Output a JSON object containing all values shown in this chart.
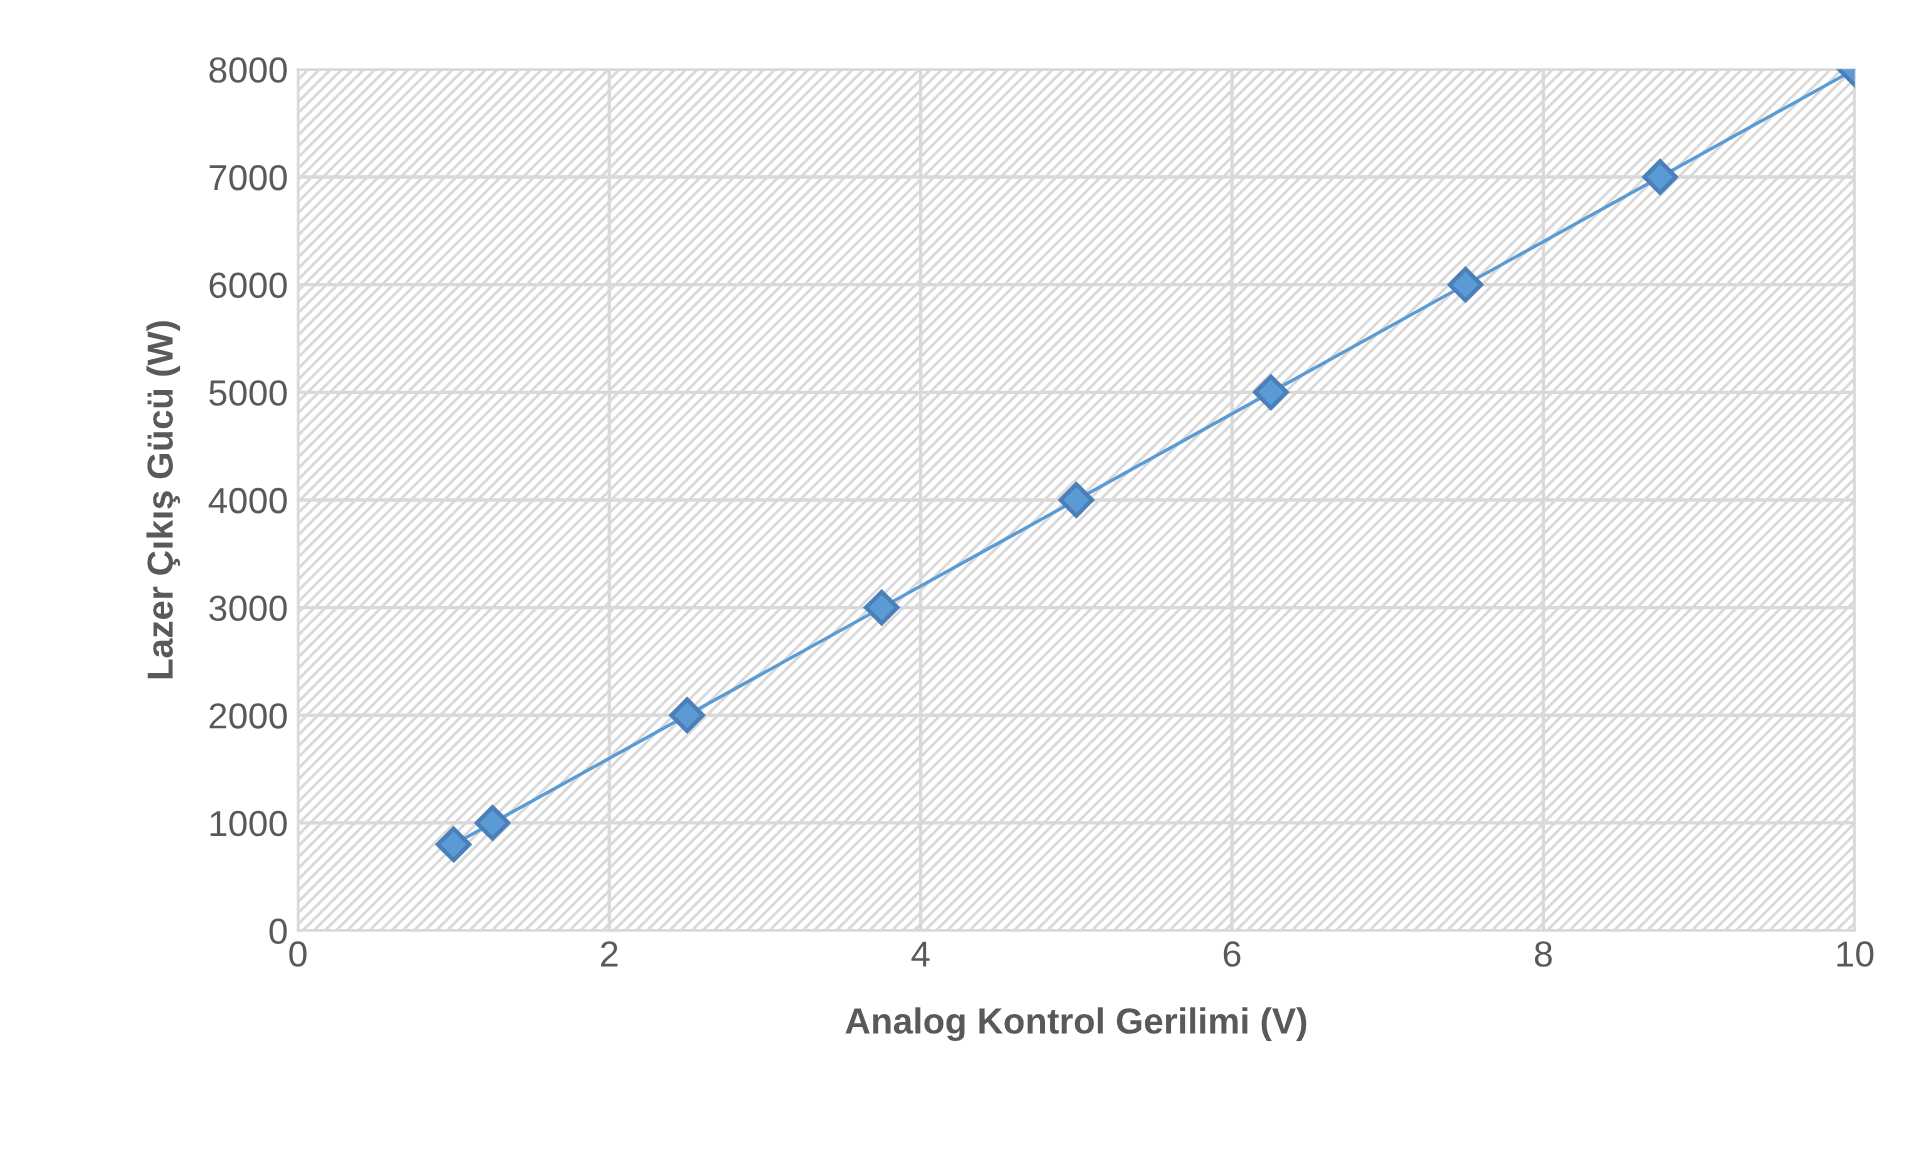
{
  "chart_data": {
    "type": "line",
    "xlabel": "Analog Kontrol Gerilimi (V)",
    "ylabel": "Lazer Çıkış Gücü (W)",
    "x": [
      1,
      1.25,
      2.5,
      3.75,
      5,
      6.25,
      7.5,
      8.75,
      10
    ],
    "series": [
      {
        "color": "#5b9bd5",
        "values": [
          800,
          1000,
          2000,
          3000,
          4000,
          5000,
          6000,
          7000,
          8000
        ]
      }
    ],
    "xlim": [
      0,
      10
    ],
    "xticks": [
      0,
      2,
      4,
      6,
      8,
      10
    ],
    "ylim": [
      0,
      8000
    ],
    "yticks": [
      0,
      1000,
      2000,
      3000,
      4000,
      5000,
      6000,
      7000,
      8000
    ],
    "grid": true,
    "marker": "diamond",
    "line_style": "solid"
  }
}
